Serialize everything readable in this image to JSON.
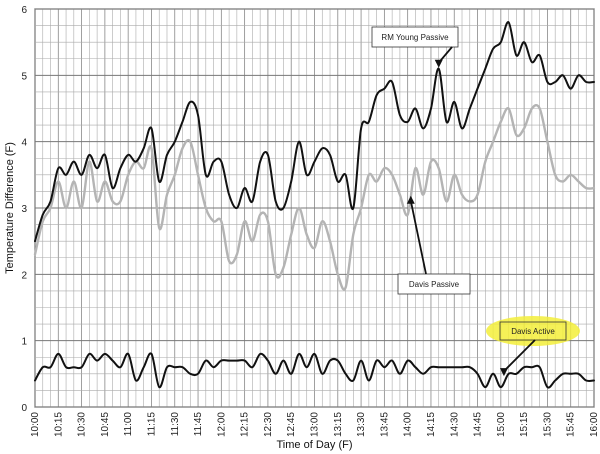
{
  "chart_data": {
    "type": "line",
    "xlabel": "Time of Day (F)",
    "ylabel": "Temperature Difference (F)",
    "ylim": [
      0,
      6
    ],
    "grid": true,
    "x_tick_labels": [
      "10:00",
      "10:15",
      "10:30",
      "10:45",
      "11:00",
      "11:15",
      "11:30",
      "11:45",
      "12:00",
      "12:15",
      "12:30",
      "12:45",
      "13:00",
      "13:15",
      "13:30",
      "13:45",
      "14:00",
      "14:15",
      "14:30",
      "14:45",
      "15:00",
      "15:15",
      "15:30",
      "15:45",
      "16:00"
    ],
    "y_tick_labels": [
      "0",
      "1",
      "2",
      "3",
      "4",
      "5",
      "6"
    ],
    "x_range_minutes": [
      600,
      960
    ],
    "series": [
      {
        "name": "RM Young Passive",
        "color": "#111111",
        "points": [
          [
            600,
            2.5
          ],
          [
            605,
            2.9
          ],
          [
            610,
            3.1
          ],
          [
            615,
            3.6
          ],
          [
            620,
            3.5
          ],
          [
            625,
            3.7
          ],
          [
            630,
            3.5
          ],
          [
            635,
            3.8
          ],
          [
            640,
            3.6
          ],
          [
            645,
            3.8
          ],
          [
            650,
            3.3
          ],
          [
            655,
            3.6
          ],
          [
            660,
            3.8
          ],
          [
            665,
            3.7
          ],
          [
            670,
            3.9
          ],
          [
            675,
            4.2
          ],
          [
            680,
            3.4
          ],
          [
            685,
            3.8
          ],
          [
            690,
            4.0
          ],
          [
            695,
            4.3
          ],
          [
            700,
            4.6
          ],
          [
            705,
            4.4
          ],
          [
            710,
            3.5
          ],
          [
            715,
            3.7
          ],
          [
            720,
            3.7
          ],
          [
            725,
            3.2
          ],
          [
            730,
            3.0
          ],
          [
            735,
            3.3
          ],
          [
            740,
            3.1
          ],
          [
            745,
            3.7
          ],
          [
            750,
            3.8
          ],
          [
            755,
            3.1
          ],
          [
            760,
            3.0
          ],
          [
            765,
            3.4
          ],
          [
            770,
            4.0
          ],
          [
            775,
            3.5
          ],
          [
            780,
            3.7
          ],
          [
            785,
            3.9
          ],
          [
            790,
            3.8
          ],
          [
            795,
            3.4
          ],
          [
            800,
            3.5
          ],
          [
            805,
            3.0
          ],
          [
            810,
            4.2
          ],
          [
            815,
            4.3
          ],
          [
            820,
            4.7
          ],
          [
            825,
            4.8
          ],
          [
            830,
            4.9
          ],
          [
            835,
            4.4
          ],
          [
            840,
            4.3
          ],
          [
            845,
            4.5
          ],
          [
            850,
            4.2
          ],
          [
            855,
            4.5
          ],
          [
            860,
            5.1
          ],
          [
            865,
            4.3
          ],
          [
            870,
            4.6
          ],
          [
            875,
            4.2
          ],
          [
            880,
            4.5
          ],
          [
            885,
            4.8
          ],
          [
            890,
            5.1
          ],
          [
            895,
            5.4
          ],
          [
            900,
            5.5
          ],
          [
            905,
            5.8
          ],
          [
            910,
            5.3
          ],
          [
            915,
            5.5
          ],
          [
            920,
            5.2
          ],
          [
            925,
            5.3
          ],
          [
            930,
            4.9
          ],
          [
            935,
            4.9
          ],
          [
            940,
            5.0
          ],
          [
            945,
            4.8
          ],
          [
            950,
            5.0
          ],
          [
            955,
            4.9
          ],
          [
            960,
            4.9
          ]
        ]
      },
      {
        "name": "Davis Passive",
        "color": "#b4b4b4",
        "points": [
          [
            600,
            2.3
          ],
          [
            605,
            2.8
          ],
          [
            610,
            3.0
          ],
          [
            615,
            3.4
          ],
          [
            620,
            3.0
          ],
          [
            625,
            3.4
          ],
          [
            630,
            3.0
          ],
          [
            635,
            3.7
          ],
          [
            640,
            3.1
          ],
          [
            645,
            3.4
          ],
          [
            650,
            3.1
          ],
          [
            655,
            3.1
          ],
          [
            660,
            3.5
          ],
          [
            665,
            3.7
          ],
          [
            670,
            3.6
          ],
          [
            675,
            3.9
          ],
          [
            680,
            2.7
          ],
          [
            685,
            3.2
          ],
          [
            690,
            3.5
          ],
          [
            695,
            3.9
          ],
          [
            700,
            4.0
          ],
          [
            705,
            3.5
          ],
          [
            710,
            3.0
          ],
          [
            715,
            2.8
          ],
          [
            720,
            2.8
          ],
          [
            725,
            2.2
          ],
          [
            730,
            2.3
          ],
          [
            735,
            2.8
          ],
          [
            740,
            2.5
          ],
          [
            745,
            2.9
          ],
          [
            750,
            2.8
          ],
          [
            755,
            2.0
          ],
          [
            760,
            2.1
          ],
          [
            765,
            2.6
          ],
          [
            770,
            3.0
          ],
          [
            775,
            2.6
          ],
          [
            780,
            2.4
          ],
          [
            785,
            2.8
          ],
          [
            790,
            2.5
          ],
          [
            795,
            2.0
          ],
          [
            800,
            1.8
          ],
          [
            805,
            2.6
          ],
          [
            810,
            3.0
          ],
          [
            815,
            3.5
          ],
          [
            820,
            3.4
          ],
          [
            825,
            3.6
          ],
          [
            830,
            3.5
          ],
          [
            835,
            3.2
          ],
          [
            840,
            2.9
          ],
          [
            845,
            3.6
          ],
          [
            850,
            3.2
          ],
          [
            855,
            3.7
          ],
          [
            860,
            3.6
          ],
          [
            865,
            3.1
          ],
          [
            870,
            3.5
          ],
          [
            875,
            3.2
          ],
          [
            880,
            3.1
          ],
          [
            885,
            3.2
          ],
          [
            890,
            3.7
          ],
          [
            895,
            4.0
          ],
          [
            900,
            4.3
          ],
          [
            905,
            4.5
          ],
          [
            910,
            4.1
          ],
          [
            915,
            4.2
          ],
          [
            920,
            4.5
          ],
          [
            925,
            4.5
          ],
          [
            930,
            4.0
          ],
          [
            935,
            3.5
          ],
          [
            940,
            3.4
          ],
          [
            945,
            3.5
          ],
          [
            950,
            3.4
          ],
          [
            955,
            3.3
          ],
          [
            960,
            3.3
          ]
        ]
      },
      {
        "name": "Davis Active",
        "color": "#111111",
        "points": [
          [
            600,
            0.4
          ],
          [
            605,
            0.6
          ],
          [
            610,
            0.6
          ],
          [
            615,
            0.8
          ],
          [
            620,
            0.6
          ],
          [
            625,
            0.6
          ],
          [
            630,
            0.6
          ],
          [
            635,
            0.8
          ],
          [
            640,
            0.7
          ],
          [
            645,
            0.8
          ],
          [
            650,
            0.7
          ],
          [
            655,
            0.6
          ],
          [
            660,
            0.8
          ],
          [
            665,
            0.4
          ],
          [
            670,
            0.6
          ],
          [
            675,
            0.8
          ],
          [
            680,
            0.3
          ],
          [
            685,
            0.6
          ],
          [
            690,
            0.6
          ],
          [
            695,
            0.6
          ],
          [
            700,
            0.5
          ],
          [
            705,
            0.5
          ],
          [
            710,
            0.7
          ],
          [
            715,
            0.6
          ],
          [
            720,
            0.7
          ],
          [
            725,
            0.7
          ],
          [
            730,
            0.7
          ],
          [
            735,
            0.7
          ],
          [
            740,
            0.6
          ],
          [
            745,
            0.8
          ],
          [
            750,
            0.7
          ],
          [
            755,
            0.5
          ],
          [
            760,
            0.7
          ],
          [
            765,
            0.5
          ],
          [
            770,
            0.8
          ],
          [
            775,
            0.6
          ],
          [
            780,
            0.8
          ],
          [
            785,
            0.5
          ],
          [
            790,
            0.7
          ],
          [
            795,
            0.7
          ],
          [
            800,
            0.5
          ],
          [
            805,
            0.4
          ],
          [
            810,
            0.7
          ],
          [
            815,
            0.4
          ],
          [
            820,
            0.7
          ],
          [
            825,
            0.6
          ],
          [
            830,
            0.7
          ],
          [
            835,
            0.5
          ],
          [
            840,
            0.7
          ],
          [
            845,
            0.6
          ],
          [
            850,
            0.5
          ],
          [
            855,
            0.6
          ],
          [
            860,
            0.6
          ],
          [
            865,
            0.6
          ],
          [
            870,
            0.6
          ],
          [
            875,
            0.6
          ],
          [
            880,
            0.6
          ],
          [
            885,
            0.5
          ],
          [
            890,
            0.3
          ],
          [
            895,
            0.5
          ],
          [
            900,
            0.3
          ],
          [
            905,
            0.5
          ],
          [
            910,
            0.5
          ],
          [
            915,
            0.6
          ],
          [
            920,
            0.6
          ],
          [
            925,
            0.6
          ],
          [
            930,
            0.3
          ],
          [
            935,
            0.4
          ],
          [
            940,
            0.5
          ],
          [
            945,
            0.5
          ],
          [
            950,
            0.5
          ],
          [
            955,
            0.4
          ],
          [
            960,
            0.4
          ]
        ]
      }
    ],
    "annotations": [
      {
        "text": "RM Young Passive",
        "series": "RM Young Passive",
        "arrow_at": [
          860,
          5.1
        ]
      },
      {
        "text": "Davis Passive",
        "series": "Davis Passive",
        "arrow_at": [
          842,
          3.2
        ]
      },
      {
        "text": "Davis Active",
        "series": "Davis Active",
        "arrow_at": [
          902,
          0.45
        ],
        "highlight": "#f3ee3a"
      }
    ]
  }
}
